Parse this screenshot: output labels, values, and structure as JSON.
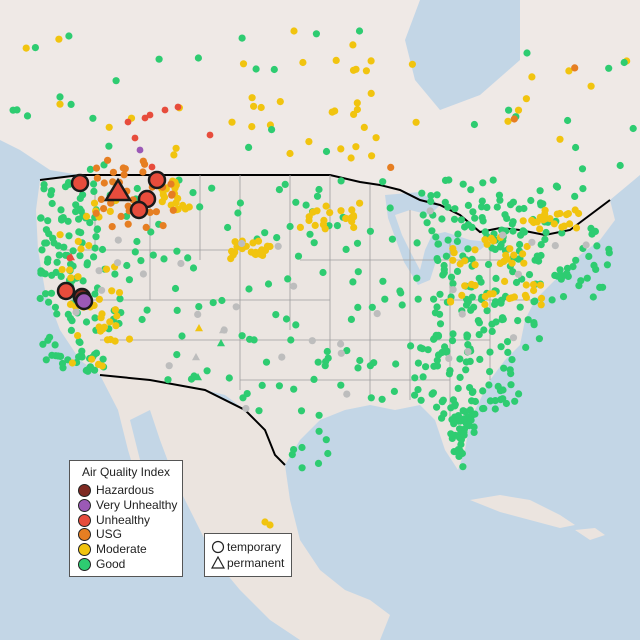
{
  "colors": {
    "ocean": "#c3d6e6",
    "land": "#ece6e2",
    "land_canada": "#efe9e6",
    "land_mexico": "#ebe4df",
    "border": "#000000",
    "state_lines": "#9e9e9e",
    "no_data": "#bdbdbd"
  },
  "aqi_legend": {
    "title": "Air Quality Index",
    "items": [
      {
        "label": "Hazardous",
        "color": "#7e2a22"
      },
      {
        "label": "Very Unhealthy",
        "color": "#9b59b6"
      },
      {
        "label": "Unhealthy",
        "color": "#e74c3c"
      },
      {
        "label": "USG",
        "color": "#e67e22"
      },
      {
        "label": "Moderate",
        "color": "#f1c40f"
      },
      {
        "label": "Good",
        "color": "#2ecc71"
      }
    ]
  },
  "type_legend": {
    "items": [
      {
        "label": "temporary",
        "shape": "circle"
      },
      {
        "label": "permanent",
        "shape": "triangle"
      }
    ]
  }
}
